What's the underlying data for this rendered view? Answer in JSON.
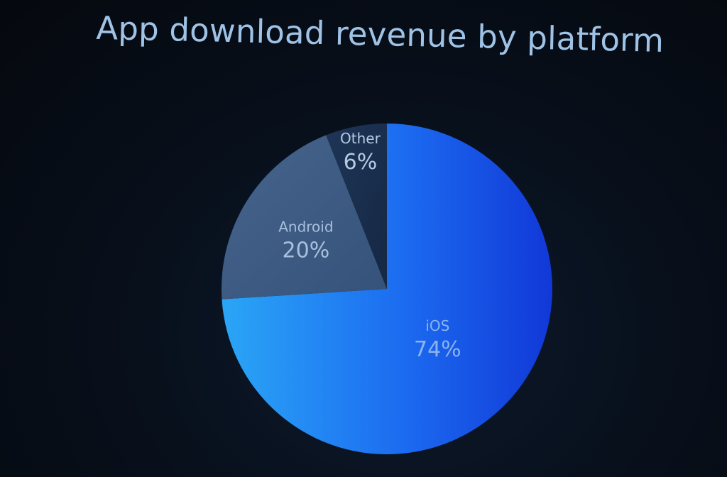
{
  "title": "App download revenue by platform",
  "chart_data": {
    "type": "pie",
    "title": "App download revenue by platform",
    "slices": [
      {
        "label": "iOS",
        "value": 74,
        "value_label": "74%",
        "color": "#1e6ef0",
        "text_color": "#8ab4ec"
      },
      {
        "label": "Android",
        "value": 20,
        "value_label": "20%",
        "color": "#3e5d86",
        "text_color": "#a8c0dc"
      },
      {
        "label": "Other",
        "value": 6,
        "value_label": "6%",
        "color": "#1a2f4e",
        "text_color": "#b6cbe3"
      }
    ],
    "start": "12 o'clock",
    "direction": "clockwise"
  }
}
